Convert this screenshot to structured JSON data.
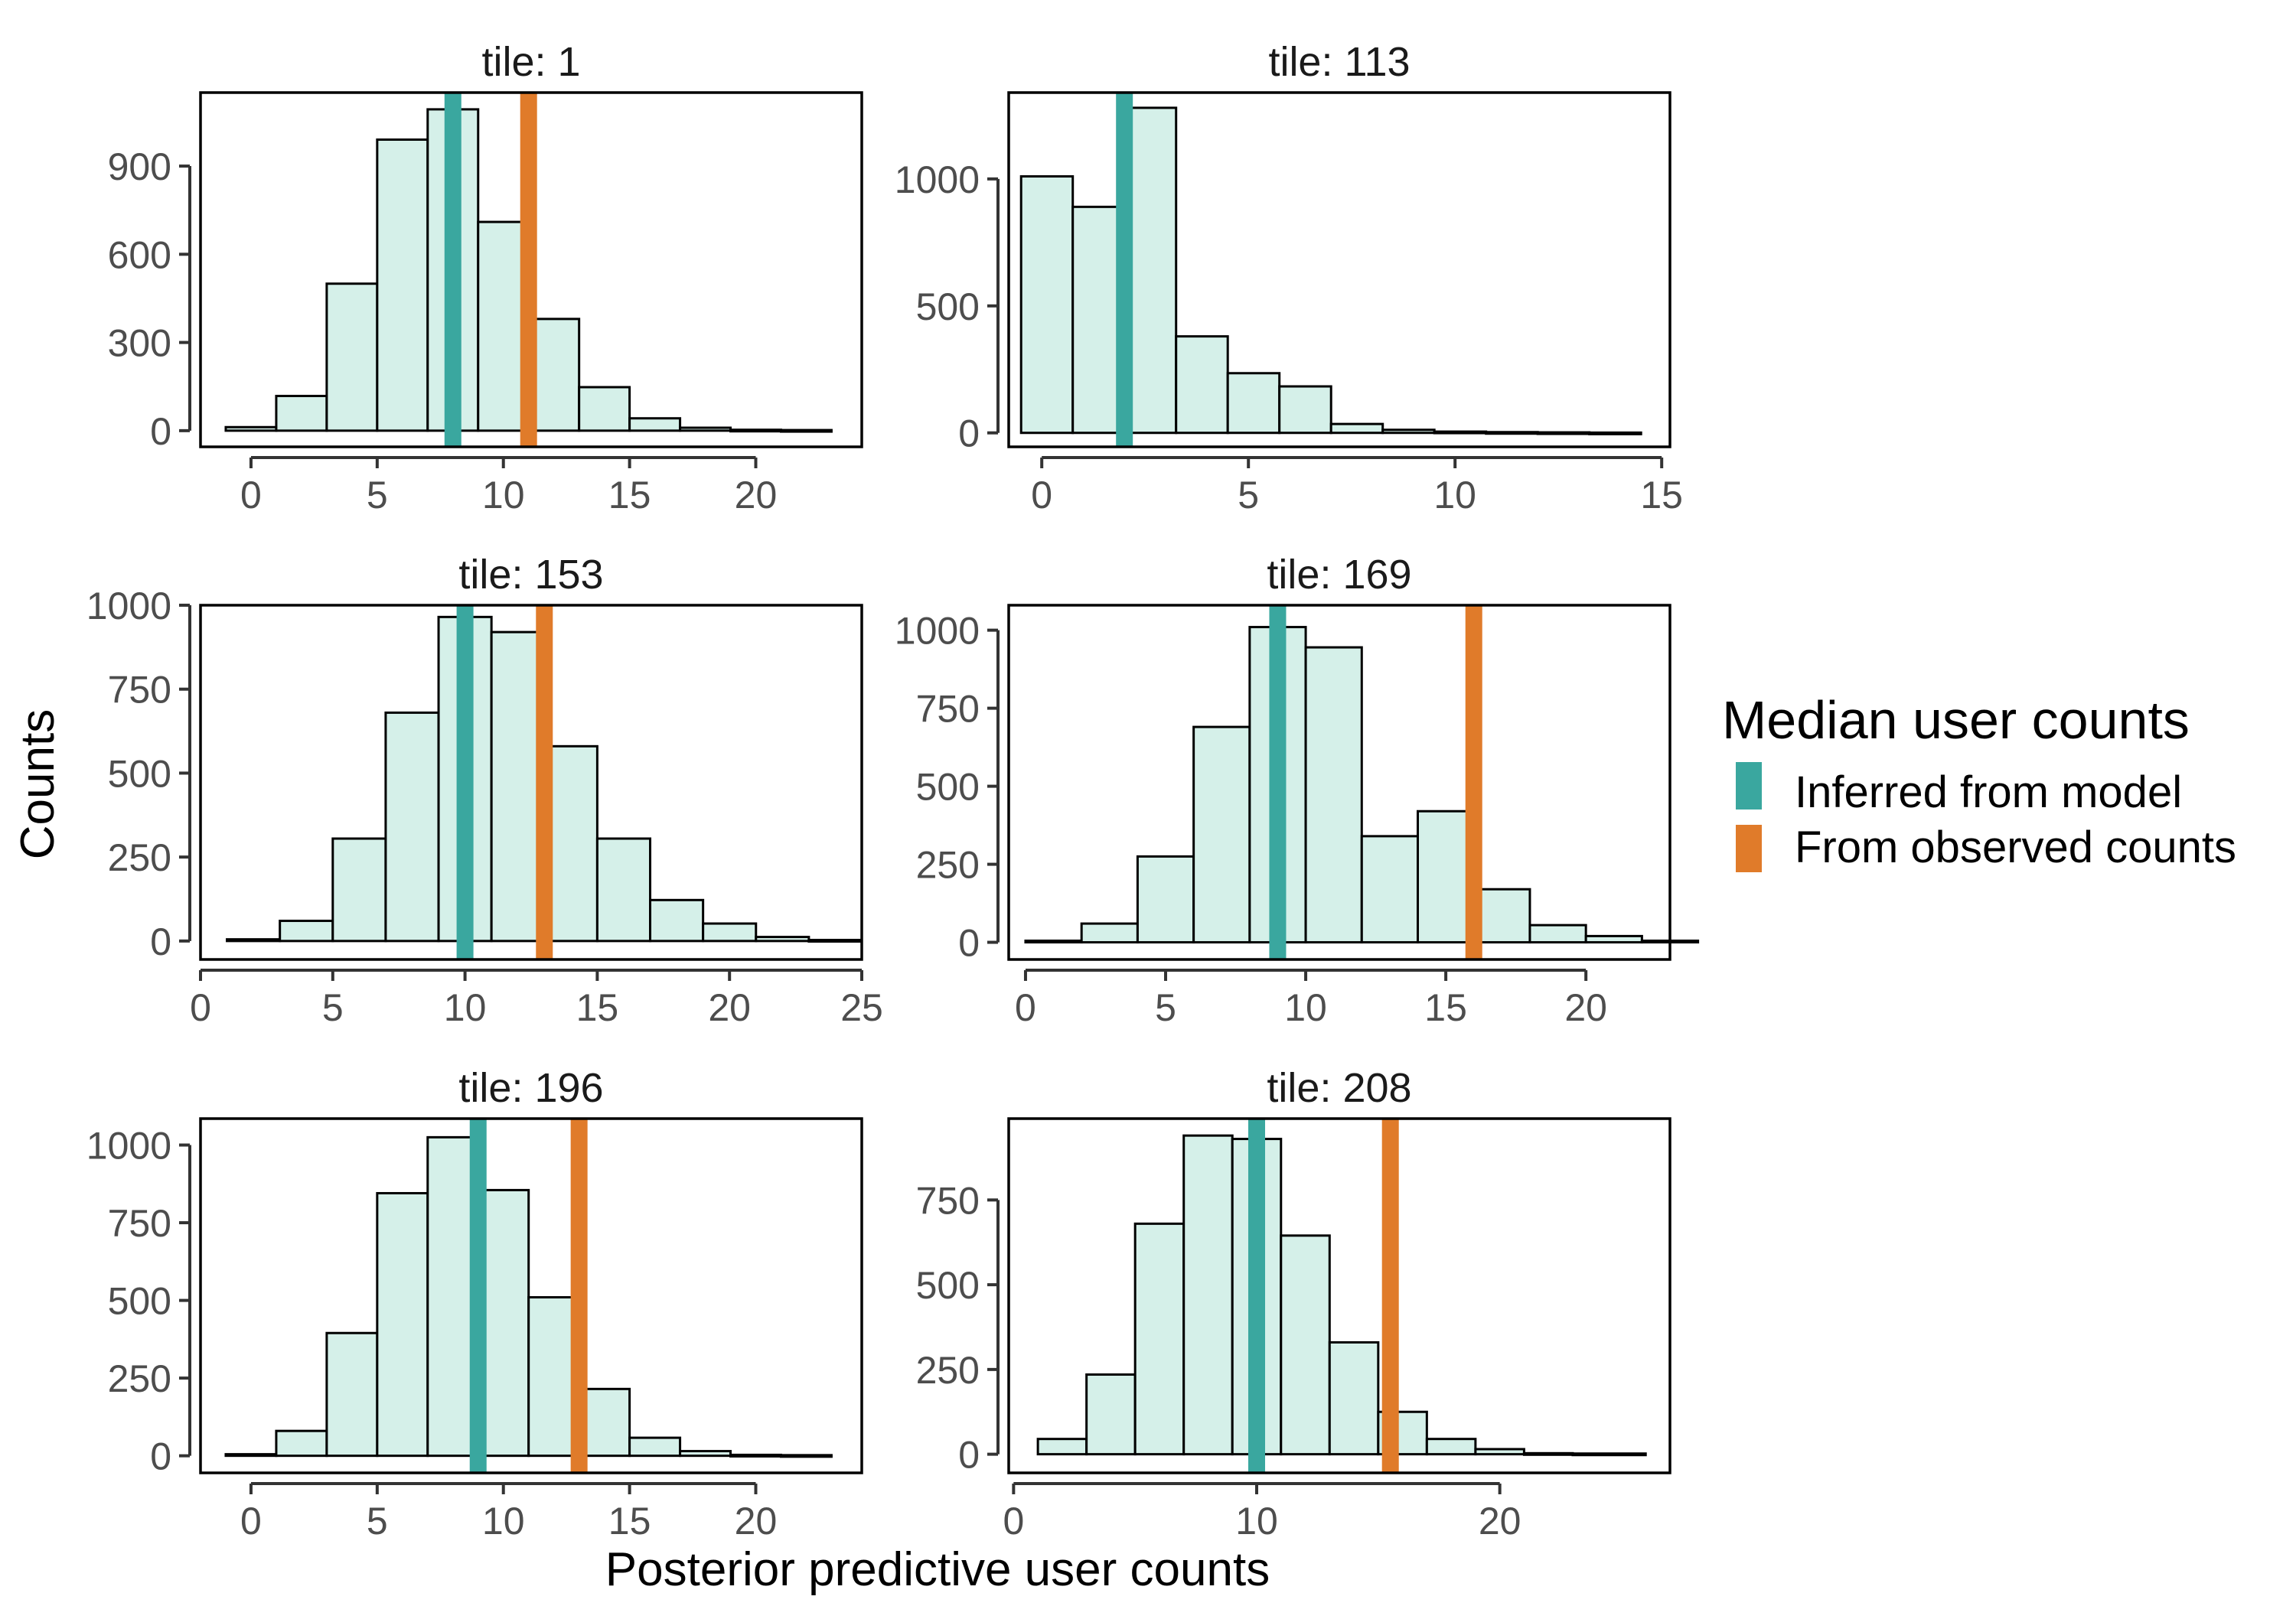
{
  "chart_data": {
    "type": "bar",
    "subtype": "faceted-histogram",
    "xlabel": "Posterior predictive user counts",
    "ylabel": "Counts",
    "legend": {
      "title": "Median user counts",
      "placement": "right",
      "items": [
        {
          "label": "Inferred from model",
          "color": "#3aa79f"
        },
        {
          "label": "From observed counts",
          "color": "#e07b2a"
        }
      ]
    },
    "colors": {
      "bar_fill": "#d5f0e9",
      "bar_stroke": "#000000",
      "inferred": "#3aa79f",
      "observed": "#e07b2a"
    },
    "panels": [
      {
        "title": "tile: 1",
        "xlim": [
          -2,
          24.2
        ],
        "ylim": [
          -55,
          1150
        ],
        "xticks": [
          0,
          5,
          10,
          15,
          20
        ],
        "yticks": [
          0,
          300,
          600,
          900
        ],
        "bins": [
          {
            "start": -1,
            "end": 1,
            "count": 12
          },
          {
            "start": 1,
            "end": 3,
            "count": 118
          },
          {
            "start": 3,
            "end": 5,
            "count": 500
          },
          {
            "start": 5,
            "end": 7,
            "count": 990
          },
          {
            "start": 7,
            "end": 9,
            "count": 1093
          },
          {
            "start": 9,
            "end": 11,
            "count": 710
          },
          {
            "start": 11,
            "end": 13,
            "count": 380
          },
          {
            "start": 13,
            "end": 15,
            "count": 148
          },
          {
            "start": 15,
            "end": 17,
            "count": 42
          },
          {
            "start": 17,
            "end": 19,
            "count": 10
          },
          {
            "start": 19,
            "end": 21,
            "count": 3
          },
          {
            "start": 21,
            "end": 23,
            "count": 2
          }
        ],
        "inferred_median": 8,
        "observed_median": 11
      },
      {
        "title": "tile: 113",
        "xlim": [
          -0.8,
          15.2
        ],
        "ylim": [
          -55,
          1340
        ],
        "xticks": [
          0,
          5,
          10,
          15
        ],
        "yticks": [
          0,
          500,
          1000
        ],
        "bins": [
          {
            "start": -0.5,
            "end": 0.75,
            "count": 1010
          },
          {
            "start": 0.75,
            "end": 2,
            "count": 890
          },
          {
            "start": 2,
            "end": 3.25,
            "count": 1280
          },
          {
            "start": 3.25,
            "end": 4.5,
            "count": 380
          },
          {
            "start": 4.5,
            "end": 5.75,
            "count": 235
          },
          {
            "start": 5.75,
            "end": 7,
            "count": 183
          },
          {
            "start": 7,
            "end": 8.25,
            "count": 35
          },
          {
            "start": 8.25,
            "end": 9.5,
            "count": 12
          },
          {
            "start": 9.5,
            "end": 10.75,
            "count": 5
          },
          {
            "start": 10.75,
            "end": 12,
            "count": 3
          },
          {
            "start": 12,
            "end": 13.25,
            "count": 2
          },
          {
            "start": 13.25,
            "end": 14.5,
            "count": 1
          }
        ],
        "inferred_median": 2,
        "observed_median": null
      },
      {
        "title": "tile: 153",
        "xlim": [
          0,
          25
        ],
        "ylim": [
          -55,
          1000
        ],
        "xticks": [
          0,
          5,
          10,
          15,
          20,
          25
        ],
        "yticks": [
          0,
          250,
          500,
          750,
          1000
        ],
        "bins": [
          {
            "start": 1,
            "end": 3,
            "count": 5
          },
          {
            "start": 3,
            "end": 5,
            "count": 60
          },
          {
            "start": 5,
            "end": 7,
            "count": 305
          },
          {
            "start": 7,
            "end": 9,
            "count": 680
          },
          {
            "start": 9,
            "end": 11,
            "count": 965
          },
          {
            "start": 11,
            "end": 13,
            "count": 920
          },
          {
            "start": 13,
            "end": 15,
            "count": 580
          },
          {
            "start": 15,
            "end": 17,
            "count": 305
          },
          {
            "start": 17,
            "end": 19,
            "count": 122
          },
          {
            "start": 19,
            "end": 21,
            "count": 52
          },
          {
            "start": 21,
            "end": 23,
            "count": 12
          },
          {
            "start": 23,
            "end": 25,
            "count": 3
          }
        ],
        "inferred_median": 10,
        "observed_median": 13
      },
      {
        "title": "tile: 169",
        "xlim": [
          -0.6,
          23
        ],
        "ylim": [
          -55,
          1080
        ],
        "xticks": [
          0,
          5,
          10,
          15,
          20
        ],
        "yticks": [
          0,
          250,
          500,
          750,
          1000
        ],
        "bins": [
          {
            "start": 0,
            "end": 2,
            "count": 5
          },
          {
            "start": 2,
            "end": 4,
            "count": 60
          },
          {
            "start": 4,
            "end": 6,
            "count": 275
          },
          {
            "start": 6,
            "end": 8,
            "count": 690
          },
          {
            "start": 8,
            "end": 10,
            "count": 1010
          },
          {
            "start": 10,
            "end": 12,
            "count": 945
          },
          {
            "start": 12,
            "end": 14,
            "count": 340
          },
          {
            "start": 14,
            "end": 16,
            "count": 420
          },
          {
            "start": 16,
            "end": 18,
            "count": 170
          },
          {
            "start": 18,
            "end": 20,
            "count": 55
          },
          {
            "start": 20,
            "end": 22,
            "count": 20
          },
          {
            "start": 22,
            "end": 24,
            "count": 5
          }
        ],
        "inferred_median": 9,
        "observed_median": 16
      },
      {
        "title": "tile: 196",
        "xlim": [
          -2,
          24.2
        ],
        "ylim": [
          -55,
          1085
        ],
        "xticks": [
          0,
          5,
          10,
          15,
          20
        ],
        "yticks": [
          0,
          250,
          500,
          750,
          1000
        ],
        "bins": [
          {
            "start": -1,
            "end": 1,
            "count": 5
          },
          {
            "start": 1,
            "end": 3,
            "count": 80
          },
          {
            "start": 3,
            "end": 5,
            "count": 395
          },
          {
            "start": 5,
            "end": 7,
            "count": 845
          },
          {
            "start": 7,
            "end": 9,
            "count": 1025
          },
          {
            "start": 9,
            "end": 11,
            "count": 855
          },
          {
            "start": 11,
            "end": 13,
            "count": 510
          },
          {
            "start": 13,
            "end": 15,
            "count": 215
          },
          {
            "start": 15,
            "end": 17,
            "count": 58
          },
          {
            "start": 17,
            "end": 19,
            "count": 15
          },
          {
            "start": 19,
            "end": 21,
            "count": 3
          },
          {
            "start": 21,
            "end": 23,
            "count": 2
          }
        ],
        "inferred_median": 9,
        "observed_median": 13
      },
      {
        "title": "tile: 208",
        "xlim": [
          -0.2,
          27
        ],
        "ylim": [
          -55,
          990
        ],
        "xticks": [
          0,
          10,
          20
        ],
        "yticks": [
          0,
          250,
          500,
          750
        ],
        "bins": [
          {
            "start": 1,
            "end": 3,
            "count": 45
          },
          {
            "start": 3,
            "end": 5,
            "count": 235
          },
          {
            "start": 5,
            "end": 7,
            "count": 680
          },
          {
            "start": 7,
            "end": 9,
            "count": 940
          },
          {
            "start": 9,
            "end": 11,
            "count": 930
          },
          {
            "start": 11,
            "end": 13,
            "count": 645
          },
          {
            "start": 13,
            "end": 15,
            "count": 330
          },
          {
            "start": 15,
            "end": 17,
            "count": 125
          },
          {
            "start": 17,
            "end": 19,
            "count": 45
          },
          {
            "start": 19,
            "end": 21,
            "count": 15
          },
          {
            "start": 21,
            "end": 23,
            "count": 3
          },
          {
            "start": 23,
            "end": 26,
            "count": 2
          }
        ],
        "inferred_median": 10,
        "observed_median": 15.5
      }
    ]
  }
}
